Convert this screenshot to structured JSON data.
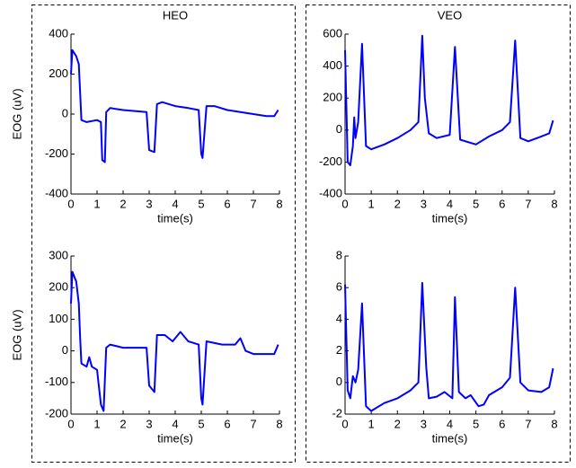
{
  "chart_data": [
    {
      "type": "line",
      "title": "HEO",
      "ylabel": "EOG (uV)",
      "xlabel": "time(s)",
      "color": "#0000ff",
      "x": [
        0,
        0.05,
        0.2,
        0.3,
        0.4,
        0.6,
        1.0,
        1.15,
        1.2,
        1.3,
        1.35,
        1.5,
        2,
        2.5,
        2.9,
        3.0,
        3.2,
        3.3,
        3.5,
        4,
        4.5,
        4.9,
        5.0,
        5.05,
        5.2,
        5.5,
        6,
        6.5,
        7,
        7.5,
        7.8,
        7.95
      ],
      "values": [
        200,
        320,
        290,
        250,
        -30,
        -40,
        -30,
        -40,
        -230,
        -240,
        10,
        30,
        20,
        15,
        10,
        -180,
        -190,
        50,
        60,
        40,
        30,
        20,
        -200,
        -220,
        40,
        40,
        20,
        10,
        0,
        -10,
        -10,
        20
      ],
      "xlim": [
        0,
        8
      ],
      "xticks": [
        0,
        1,
        2,
        3,
        4,
        5,
        6,
        7,
        8
      ],
      "ylim": [
        -400,
        400
      ],
      "yticks": [
        -400,
        -200,
        0,
        200,
        400
      ]
    },
    {
      "type": "line",
      "title": "VEO",
      "xlabel": "time(s)",
      "color": "#0000ff",
      "x": [
        0,
        0.1,
        0.2,
        0.3,
        0.35,
        0.4,
        0.5,
        0.65,
        0.8,
        1,
        1.5,
        2,
        2.5,
        2.8,
        2.95,
        3.05,
        3.2,
        3.5,
        4,
        4.2,
        4.4,
        5,
        5.5,
        6,
        6.3,
        6.5,
        6.7,
        7,
        7.5,
        7.8,
        7.95
      ],
      "values": [
        500,
        -200,
        -220,
        -100,
        80,
        -50,
        50,
        540,
        -100,
        -120,
        -90,
        -50,
        0,
        50,
        590,
        200,
        -20,
        -50,
        -30,
        520,
        -60,
        -90,
        -40,
        0,
        50,
        560,
        -50,
        -70,
        -40,
        -20,
        60
      ],
      "xlim": [
        0,
        8
      ],
      "xticks": [
        0,
        1,
        2,
        3,
        4,
        5,
        6,
        7,
        8
      ],
      "ylim": [
        -400,
        600
      ],
      "yticks": [
        -400,
        -200,
        0,
        200,
        400,
        600
      ]
    },
    {
      "type": "line",
      "ylabel": "EOG (uV)",
      "xlabel": "time(s)",
      "color": "#0000ff",
      "x": [
        0,
        0.05,
        0.2,
        0.3,
        0.35,
        0.4,
        0.6,
        0.7,
        0.8,
        1,
        1.15,
        1.25,
        1.35,
        1.5,
        2,
        2.5,
        2.9,
        3.0,
        3.2,
        3.3,
        3.6,
        3.9,
        4.2,
        4.5,
        4.9,
        5.0,
        5.05,
        5.2,
        5.8,
        6.3,
        6.5,
        6.7,
        7,
        7.5,
        7.8,
        7.95
      ],
      "values": [
        150,
        250,
        220,
        150,
        40,
        -40,
        -50,
        -20,
        -50,
        -60,
        -170,
        -190,
        10,
        20,
        10,
        10,
        10,
        -110,
        -130,
        50,
        50,
        30,
        60,
        30,
        20,
        -150,
        -170,
        30,
        20,
        20,
        40,
        0,
        -10,
        -10,
        -10,
        20
      ],
      "xlim": [
        0,
        8
      ],
      "xticks": [
        0,
        1,
        2,
        3,
        4,
        5,
        6,
        7,
        8
      ],
      "ylim": [
        -200,
        300
      ],
      "yticks": [
        -200,
        -100,
        0,
        100,
        200,
        300
      ]
    },
    {
      "type": "line",
      "xlabel": "time(s)",
      "color": "#0000ff",
      "x": [
        0,
        0.1,
        0.2,
        0.3,
        0.4,
        0.5,
        0.65,
        0.8,
        1.0,
        1.5,
        2,
        2.5,
        2.8,
        2.95,
        3.1,
        3.2,
        3.5,
        3.8,
        4.1,
        4.2,
        4.35,
        4.6,
        4.8,
        5.1,
        5.3,
        5.5,
        6,
        6.3,
        6.5,
        6.7,
        7,
        7.5,
        7.8,
        7.95
      ],
      "values": [
        6.2,
        -0.5,
        -1,
        0.4,
        0,
        0.8,
        5,
        -1.5,
        -1.8,
        -1.3,
        -1,
        -0.5,
        0,
        6.3,
        1,
        -1,
        -0.9,
        -0.6,
        -1,
        5.4,
        -0.6,
        -1,
        -0.8,
        -1.5,
        -1.4,
        -0.8,
        -0.3,
        0.3,
        6,
        0,
        -0.5,
        -0.6,
        -0.3,
        0.9
      ],
      "xlim": [
        0,
        8
      ],
      "xticks": [
        0,
        1,
        2,
        3,
        4,
        5,
        6,
        7,
        8
      ],
      "ylim": [
        -2,
        8
      ],
      "yticks": [
        -2,
        0,
        2,
        4,
        6,
        8
      ]
    }
  ]
}
